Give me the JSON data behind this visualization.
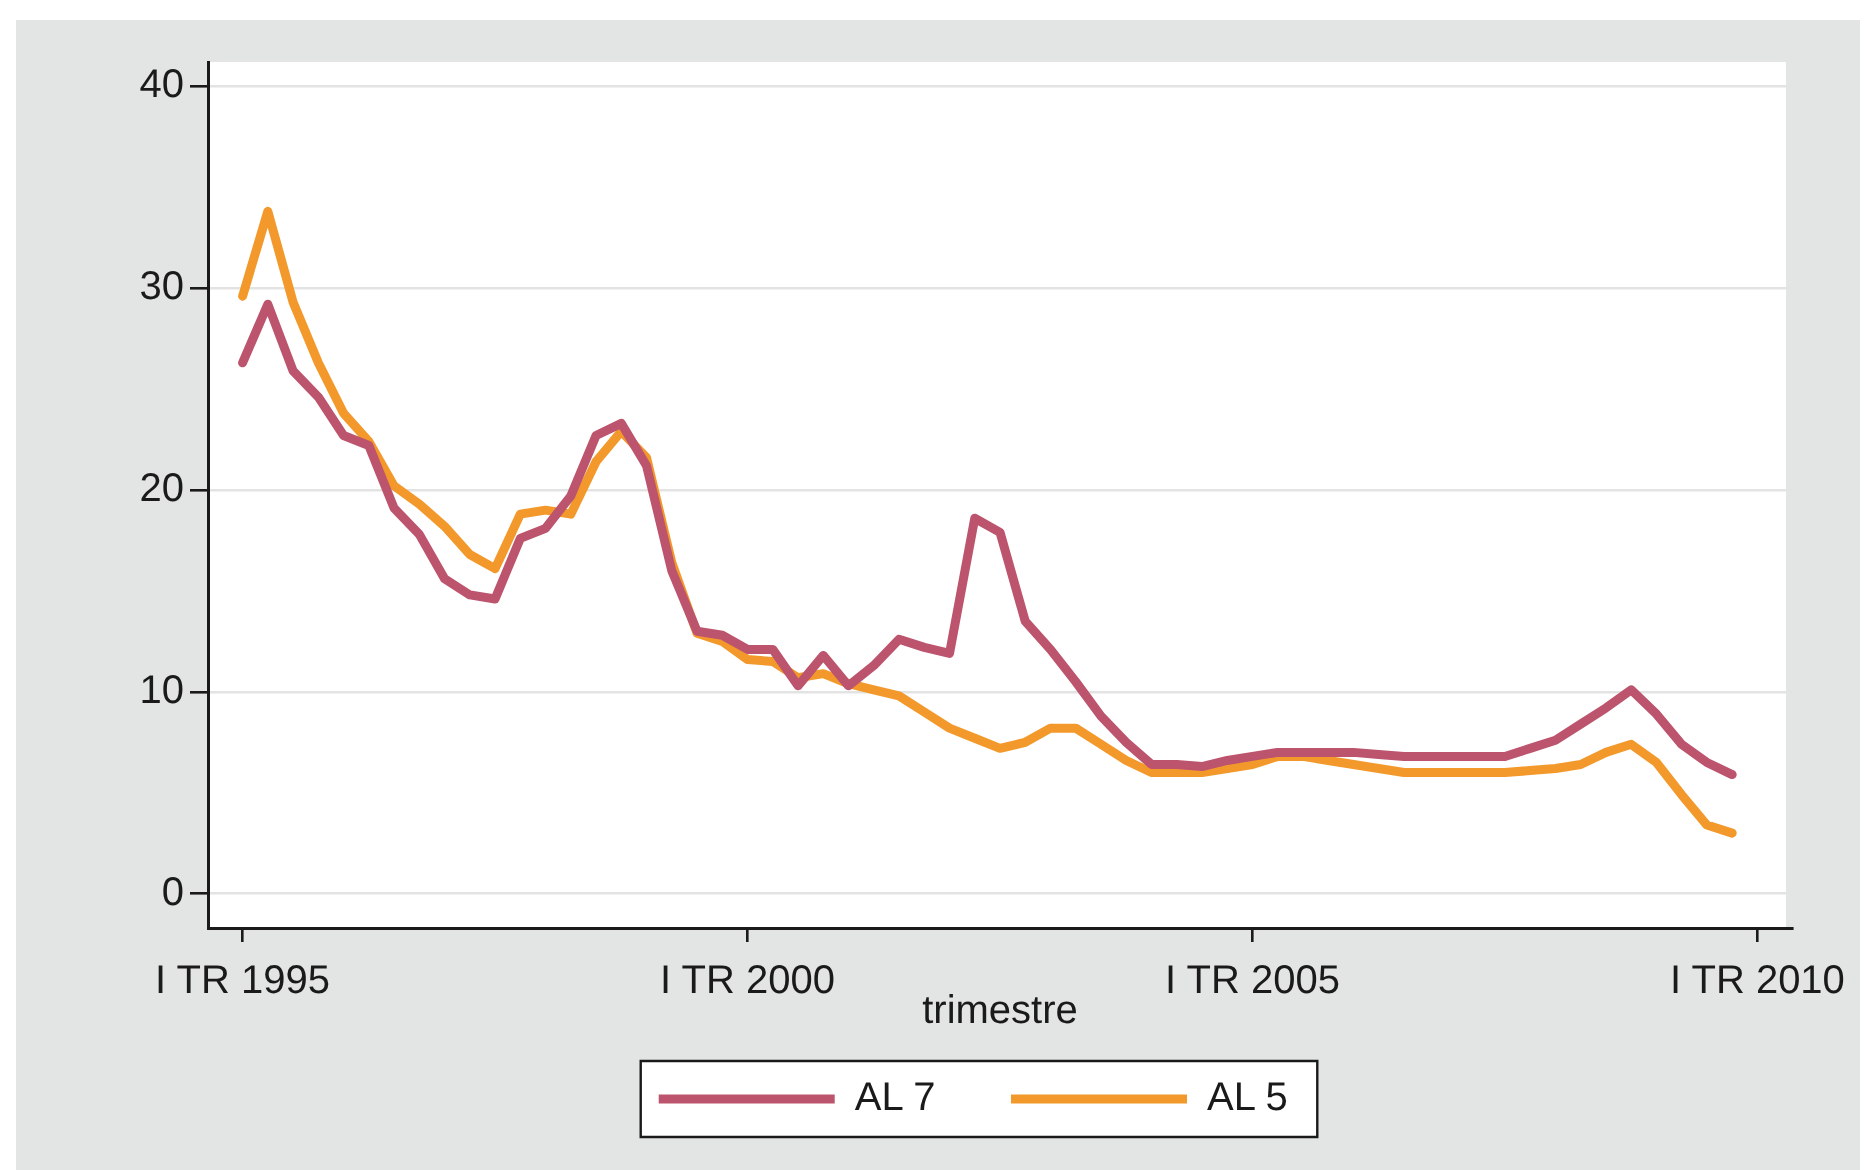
{
  "chart_data": {
    "type": "line",
    "xlabel": "trimestre",
    "categories": [
      "I TR 1995",
      null,
      null,
      null,
      null,
      null,
      null,
      null,
      null,
      null,
      null,
      null,
      null,
      null,
      null,
      null,
      null,
      null,
      null,
      null,
      "I TR 2000",
      null,
      null,
      null,
      null,
      null,
      null,
      null,
      null,
      null,
      null,
      null,
      null,
      null,
      null,
      null,
      null,
      null,
      null,
      null,
      "I TR 2005",
      null,
      null,
      null,
      null,
      null,
      null,
      null,
      null,
      null,
      null,
      null,
      null,
      null,
      null,
      null,
      null,
      null,
      null,
      null,
      "I TR 2010"
    ],
    "ylim": [
      -1.7,
      41.2
    ],
    "yticks": [
      0,
      10,
      20,
      30,
      40
    ],
    "grid": "y",
    "legend": "bottom",
    "line_style": "solid",
    "series": [
      {
        "name": "AL 7",
        "color": "#bc546d",
        "values": [
          26.3,
          29.2,
          25.9,
          24.6,
          22.7,
          22.2,
          19.1,
          17.8,
          15.6,
          14.8,
          14.6,
          17.6,
          18.1,
          19.7,
          22.7,
          23.3,
          21.2,
          16.0,
          13.0,
          12.8,
          12.1,
          12.1,
          10.3,
          11.8,
          10.3,
          11.3,
          12.6,
          12.2,
          11.9,
          18.6,
          17.9,
          13.5,
          12.1,
          10.5,
          8.8,
          7.5,
          6.4,
          6.4,
          6.3,
          6.6,
          6.8,
          7.0,
          7.0,
          7.0,
          7.0,
          6.9,
          6.8,
          6.8,
          6.8,
          6.8,
          6.8,
          7.2,
          7.6,
          8.4,
          9.2,
          10.1,
          8.9,
          7.4,
          6.5,
          5.9,
          null
        ]
      },
      {
        "name": "AL 5",
        "color": "#f3992b",
        "values": [
          29.6,
          33.8,
          29.3,
          26.3,
          23.8,
          22.4,
          20.2,
          19.3,
          18.2,
          16.8,
          16.1,
          18.8,
          19.0,
          18.8,
          21.4,
          22.9,
          21.6,
          16.4,
          12.9,
          12.5,
          11.6,
          11.5,
          10.7,
          10.9,
          10.4,
          10.1,
          9.8,
          9.0,
          8.2,
          7.7,
          7.2,
          7.5,
          8.2,
          8.2,
          7.4,
          6.6,
          6.0,
          6.0,
          6.0,
          6.2,
          6.4,
          6.8,
          6.8,
          6.6,
          6.4,
          6.2,
          6.0,
          6.0,
          6.0,
          6.0,
          6.0,
          6.1,
          6.2,
          6.4,
          7.0,
          7.4,
          6.5,
          4.9,
          3.4,
          3.0,
          null
        ]
      }
    ]
  }
}
